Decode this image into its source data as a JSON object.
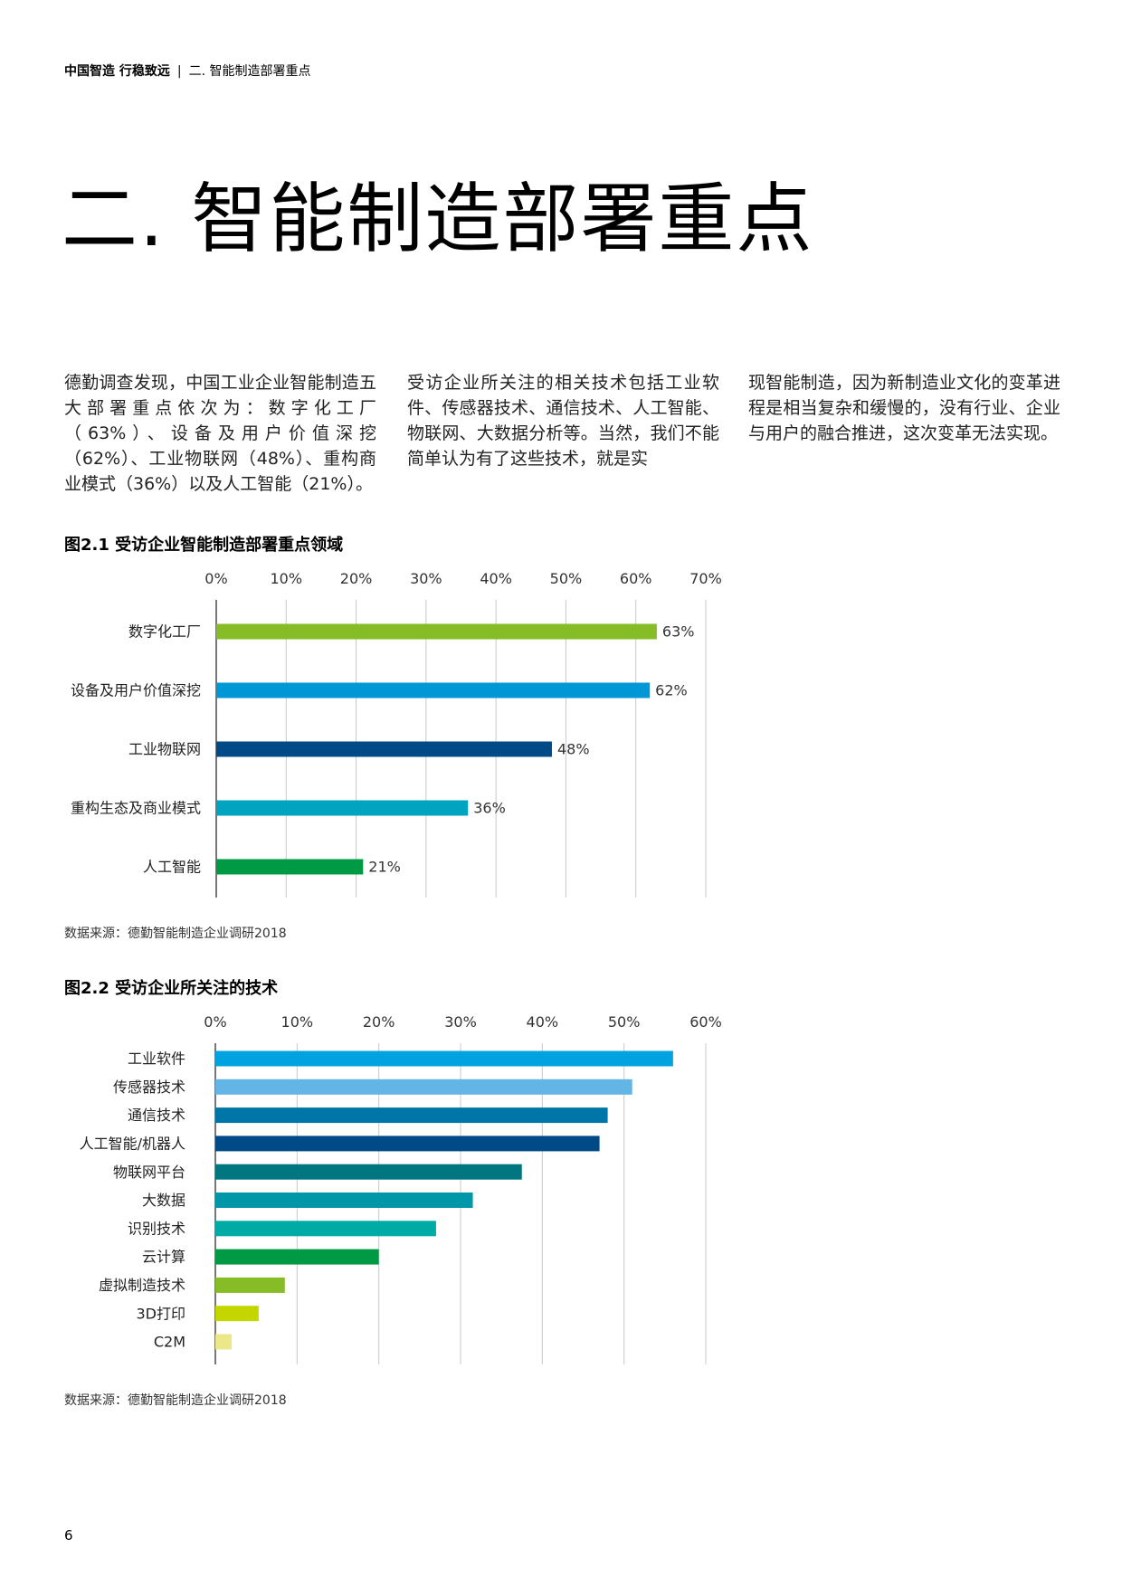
{
  "header": {
    "brand": "中国智造 行稳致远",
    "separator": "|",
    "section": "二. 智能制造部署重点"
  },
  "title": "二. 智能制造部署重点",
  "body": {
    "col1": "德勤调查发现，中国工业企业智能制造五大部署重点依次为：数字化工厂（63%）、设备及用户价值深挖（62%）、工业物联网（48%）、重构商业模式（36%）以及人工智能（21%）。",
    "col2": "受访企业所关注的相关技术包括工业软件、传感器技术、通信技术、人工智能、物联网、大数据分析等。当然，我们不能简单认为有了这些技术，就是实",
    "col3": "现智能制造，因为新制造业文化的变革进程是相当复杂和缓慢的，没有行业、企业与用户的融合推进，这次变革无法实现。"
  },
  "figures": {
    "fig1_title": "图2.1 受访企业智能制造部署重点领域",
    "fig1_source": "数据来源：德勤智能制造企业调研2018",
    "fig2_title": "图2.2 受访企业所关注的技术",
    "fig2_source": "数据来源：德勤智能制造企业调研2018"
  },
  "page_number": "6",
  "chart_data": [
    {
      "type": "bar",
      "orientation": "horizontal",
      "title": "图2.1 受访企业智能制造部署重点领域",
      "xlim": [
        0,
        70
      ],
      "ticks": [
        "0%",
        "10%",
        "20%",
        "30%",
        "40%",
        "50%",
        "60%",
        "70%"
      ],
      "tick_values": [
        0,
        10,
        20,
        30,
        40,
        50,
        60,
        70
      ],
      "axis_position": "top",
      "grid": true,
      "categories": [
        "数字化工厂",
        "设备及用户价值深挖",
        "工业物联网",
        "重构生态及商业模式",
        "人工智能"
      ],
      "values": [
        63,
        62,
        48,
        36,
        21
      ],
      "value_labels": [
        "63%",
        "62%",
        "48%",
        "36%",
        "21%"
      ],
      "colors": [
        "#86bc25",
        "#0097d6",
        "#004b87",
        "#00a3c0",
        "#009a44"
      ]
    },
    {
      "type": "bar",
      "orientation": "horizontal",
      "title": "图2.2 受访企业所关注的技术",
      "xlim": [
        0,
        60
      ],
      "ticks": [
        "0%",
        "10%",
        "20%",
        "30%",
        "40%",
        "50%",
        "60%"
      ],
      "tick_values": [
        0,
        10,
        20,
        30,
        40,
        50,
        60
      ],
      "axis_position": "top",
      "grid": true,
      "categories": [
        "工业软件",
        "传感器技术",
        "通信技术",
        "人工智能/机器人",
        "物联网平台",
        "大数据",
        "识别技术",
        "云计算",
        "虚拟制造技术",
        "3D打印",
        "C2M"
      ],
      "values": [
        56,
        51,
        48,
        47,
        37.5,
        31.5,
        27,
        20,
        8.5,
        5.3,
        2
      ],
      "colors": [
        "#00a3e0",
        "#62b5e5",
        "#0076a8",
        "#004b87",
        "#007681",
        "#0097a9",
        "#00aba6",
        "#009a44",
        "#86bc25",
        "#c4d600",
        "#ece88a"
      ]
    }
  ]
}
